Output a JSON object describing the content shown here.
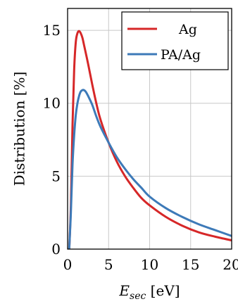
{
  "chart_data": {
    "type": "line",
    "title": "",
    "xlabel": "E_sec [eV]",
    "ylabel": "Distribution [%]",
    "xlim": [
      0,
      20
    ],
    "ylim": [
      0,
      16.5
    ],
    "x_ticks": [
      "0",
      "5",
      "10",
      "15",
      "20"
    ],
    "y_ticks": [
      "0",
      "5",
      "10",
      "15"
    ],
    "grid": true,
    "legend_position": "top-right",
    "series": [
      {
        "name": "Ag",
        "color": "#d62728",
        "x": [
          0.2,
          0.4,
          0.6,
          0.8,
          1.0,
          1.2,
          1.4,
          1.6,
          1.8,
          2.0,
          2.5,
          3.0,
          3.5,
          4.0,
          5.0,
          6.0,
          7.0,
          8.0,
          9.0,
          10.0,
          12.0,
          14.0,
          16.0,
          18.0,
          20.0
        ],
        "y": [
          0.0,
          3.0,
          8.5,
          12.3,
          14.2,
          14.8,
          14.95,
          14.8,
          14.5,
          14.0,
          12.7,
          11.3,
          10.0,
          8.9,
          7.3,
          6.0,
          5.0,
          4.2,
          3.5,
          3.0,
          2.2,
          1.6,
          1.15,
          0.85,
          0.6
        ]
      },
      {
        "name": "PA/Ag",
        "color": "#3d7ab8",
        "x": [
          0.2,
          0.4,
          0.6,
          0.8,
          1.0,
          1.2,
          1.4,
          1.6,
          1.8,
          2.0,
          2.2,
          2.5,
          3.0,
          3.5,
          4.0,
          5.0,
          6.0,
          7.0,
          8.0,
          9.0,
          10.0,
          12.0,
          14.0,
          16.0,
          18.0,
          20.0
        ],
        "y": [
          0.0,
          2.5,
          5.8,
          7.8,
          9.2,
          10.0,
          10.5,
          10.8,
          10.9,
          10.9,
          10.8,
          10.5,
          9.9,
          9.1,
          8.4,
          7.3,
          6.3,
          5.5,
          4.8,
          4.2,
          3.6,
          2.8,
          2.2,
          1.7,
          1.3,
          0.9
        ]
      }
    ]
  }
}
